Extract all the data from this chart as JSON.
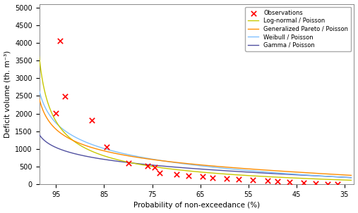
{
  "obs_x": [
    94.2,
    93.2,
    95.0,
    87.5,
    84.5,
    80.0,
    76.0,
    74.5,
    73.5,
    70.0,
    67.5,
    64.5,
    62.5,
    59.5,
    57.0,
    54.0,
    51.0,
    49.0,
    46.5,
    43.5,
    41.0,
    38.5,
    36.5
  ],
  "obs_y": [
    4050,
    2480,
    2020,
    1820,
    1060,
    600,
    520,
    490,
    330,
    290,
    250,
    215,
    190,
    165,
    145,
    120,
    100,
    80,
    60,
    35,
    20,
    10,
    5
  ],
  "xlim": [
    98.5,
    33.0
  ],
  "ylim": [
    0,
    5100
  ],
  "xticks": [
    95,
    85,
    75,
    65,
    55,
    45,
    35
  ],
  "yticks": [
    0,
    500,
    1000,
    1500,
    2000,
    2500,
    3000,
    3500,
    4000,
    4500,
    5000
  ],
  "xlabel": "Probability of non-exceedance (%)",
  "ylabel": "Deficit volume (th. m⁻³)",
  "lognormal_color": "#c8c800",
  "gpareto_color": "#ff8c00",
  "weibull_color": "#80c0ff",
  "gamma_color": "#5050a0",
  "obs_color": "#ff0000",
  "legend_entries": [
    "Observations",
    "Log-normal / Poisson",
    "Generalized Pareto / Poisson",
    "Weibull / Poisson",
    "Gamma / Poisson"
  ],
  "lam": 3.0,
  "ln_mu": 4.2,
  "ln_sigma": 1.55,
  "gp_xi": 0.25,
  "gp_scale": 220,
  "wb_k": 0.62,
  "wb_scale": 180,
  "gam_alpha": 0.65,
  "gam_scale": 320
}
